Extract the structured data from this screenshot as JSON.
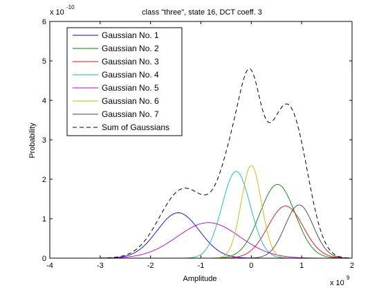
{
  "chart_data": {
    "type": "line",
    "title": "class \"three\", state 16, DCT coeff. 3",
    "xlabel": "Amplitude",
    "ylabel": "Probability",
    "x_exponent_label": "x 10",
    "x_exponent_power": "9",
    "y_exponent_label": "x 10",
    "y_exponent_power": "-10",
    "xlim": [
      -4,
      2
    ],
    "ylim": [
      0,
      6
    ],
    "x_ticks": [
      "-4",
      "-3",
      "-2",
      "-1",
      "0",
      "1",
      "2"
    ],
    "y_ticks": [
      "0",
      "1",
      "2",
      "3",
      "4",
      "5",
      "6"
    ],
    "x_tick_values": [
      -4,
      -3,
      -2,
      -1,
      0,
      1,
      2
    ],
    "y_tick_values": [
      0,
      1,
      2,
      3,
      4,
      5,
      6
    ],
    "grid": false,
    "legend_position": "top-left",
    "series": [
      {
        "name": "Gaussian No. 1",
        "color": "#0000ff",
        "mean": -1.45,
        "peak": 1.15,
        "sigma": 0.42,
        "style": "solid"
      },
      {
        "name": "Gaussian No. 2",
        "color": "#008000",
        "mean": 0.52,
        "peak": 1.87,
        "sigma": 0.35,
        "style": "solid"
      },
      {
        "name": "Gaussian No. 3",
        "color": "#ff0000",
        "mean": 0.68,
        "peak": 1.32,
        "sigma": 0.35,
        "style": "solid"
      },
      {
        "name": "Gaussian No. 4",
        "color": "#00bfbf",
        "mean": -0.3,
        "peak": 2.2,
        "sigma": 0.28,
        "style": "solid"
      },
      {
        "name": "Gaussian No. 5",
        "color": "#bf00bf",
        "mean": -0.85,
        "peak": 0.9,
        "sigma": 0.62,
        "style": "solid"
      },
      {
        "name": "Gaussian No. 6",
        "color": "#bfbf00",
        "mean": 0.0,
        "peak": 2.35,
        "sigma": 0.2,
        "style": "solid"
      },
      {
        "name": "Gaussian No. 7",
        "color": "#404040",
        "mean": 0.95,
        "peak": 1.35,
        "sigma": 0.28,
        "style": "solid"
      }
    ],
    "sum_series": {
      "name": "Sum of Gaussians",
      "color": "#000000",
      "style": "dashed"
    }
  }
}
